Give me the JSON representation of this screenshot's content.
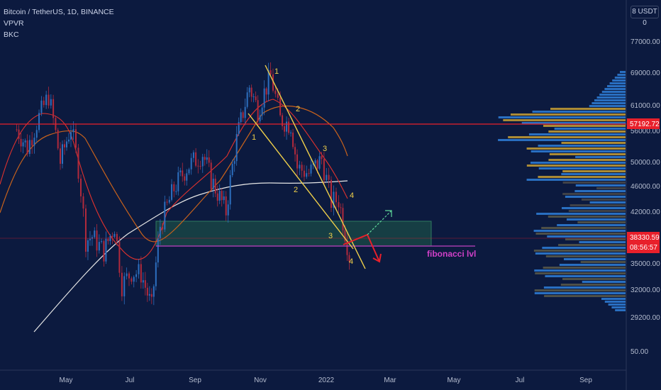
{
  "legend": {
    "symbol": "Bitcoin / TetherUS, 1D, BINANCE",
    "indicator_1": "VPVR",
    "indicator_2": "BKC"
  },
  "unit_button": "8 USDT 0",
  "chart_data": {
    "type": "candlestick",
    "title": "Bitcoin / TetherUS, 1D, BINANCE",
    "price_axis": {
      "scale": "log",
      "labels": [
        "77000.00",
        "69000.00",
        "61000.00",
        "56000.00",
        "50000.00",
        "46000.00",
        "42000.00",
        "35000.00",
        "32000.00",
        "29200.00",
        "50.00"
      ],
      "badges": [
        {
          "value": "57192.72",
          "color": "#e8202b"
        },
        {
          "value": "38330.59",
          "sub": "08:56:57",
          "color": "#e8202b"
        }
      ]
    },
    "time_axis": {
      "labels": [
        "May",
        "Jul",
        "Sep",
        "Nov",
        "2022",
        "Mar",
        "May",
        "Jul",
        "Sep"
      ]
    },
    "close_series": [
      {
        "date": "2021-03-15",
        "close": 56000
      },
      {
        "date": "2021-03-25",
        "close": 52500
      },
      {
        "date": "2021-04-05",
        "close": 58500
      },
      {
        "date": "2021-04-14",
        "close": 63000
      },
      {
        "date": "2021-04-25",
        "close": 50000
      },
      {
        "date": "2021-05-05",
        "close": 56500
      },
      {
        "date": "2021-05-12",
        "close": 49000
      },
      {
        "date": "2021-05-19",
        "close": 38000
      },
      {
        "date": "2021-05-25",
        "close": 38500
      },
      {
        "date": "2021-06-05",
        "close": 36500
      },
      {
        "date": "2021-06-15",
        "close": 40000
      },
      {
        "date": "2021-06-22",
        "close": 32500
      },
      {
        "date": "2021-07-01",
        "close": 34000
      },
      {
        "date": "2021-07-10",
        "close": 33800
      },
      {
        "date": "2021-07-20",
        "close": 30000
      },
      {
        "date": "2021-07-28",
        "close": 40000
      },
      {
        "date": "2021-08-10",
        "close": 45500
      },
      {
        "date": "2021-08-22",
        "close": 49000
      },
      {
        "date": "2021-09-06",
        "close": 51500
      },
      {
        "date": "2021-09-14",
        "close": 47000
      },
      {
        "date": "2021-09-28",
        "close": 42000
      },
      {
        "date": "2021-10-08",
        "close": 54000
      },
      {
        "date": "2021-10-20",
        "close": 65000
      },
      {
        "date": "2021-10-28",
        "close": 60000
      },
      {
        "date": "2021-11-09",
        "close": 67500
      },
      {
        "date": "2021-11-18",
        "close": 58000
      },
      {
        "date": "2021-11-28",
        "close": 57000
      },
      {
        "date": "2021-12-04",
        "close": 49000
      },
      {
        "date": "2021-12-15",
        "close": 48000
      },
      {
        "date": "2021-12-27",
        "close": 50500
      },
      {
        "date": "2022-01-05",
        "close": 43500
      },
      {
        "date": "2022-01-12",
        "close": 43800
      },
      {
        "date": "2022-01-22",
        "close": 36000
      },
      {
        "date": "2022-01-28",
        "close": 38300
      }
    ],
    "horizontal_lines": [
      {
        "price": 57192.72,
        "color": "#e8202b"
      },
      {
        "price": 38330.59,
        "color": "#e8202b",
        "style": "thin"
      },
      {
        "price": 37000,
        "color": "#c040c0",
        "label": "fibonacci lvl"
      }
    ],
    "zone": {
      "price_high": 40500,
      "price_low": 37000,
      "color": "#1f5c48"
    },
    "wave_labels": [
      "1",
      "2",
      "3",
      "4",
      "1",
      "2",
      "3",
      "4"
    ],
    "annotation": "fibonacci lvl",
    "volume_profile": {
      "colors": [
        "#2f7fd8",
        "#c8a035",
        "#4a4a4a"
      ]
    }
  }
}
